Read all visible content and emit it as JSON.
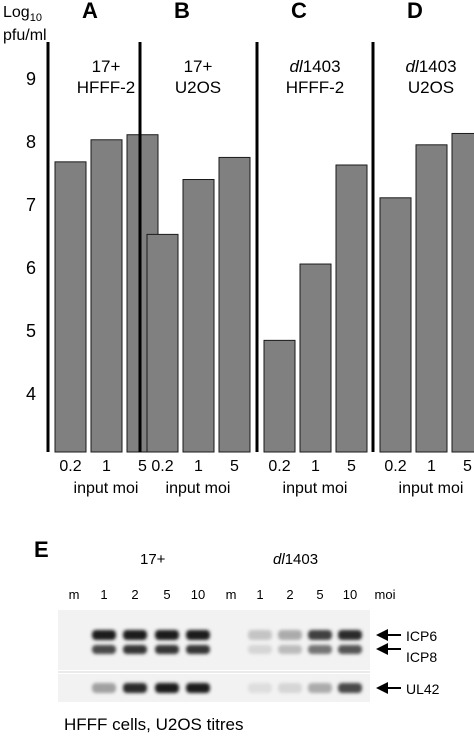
{
  "chart_data": [
    {
      "type": "bar",
      "panel": "A",
      "condition": [
        "17+",
        "HFFF-2"
      ],
      "categories": [
        "0.2",
        "1",
        "5"
      ],
      "values": [
        7.7,
        8.05,
        8.13
      ],
      "xlabel": "input moi",
      "ylabel": "Log10 pfu/ml",
      "ylim": [
        3.1,
        9.6
      ],
      "yticks": [
        4,
        5,
        6,
        7,
        8,
        9
      ]
    },
    {
      "type": "bar",
      "panel": "B",
      "condition": [
        "17+",
        "U2OS"
      ],
      "categories": [
        "0.2",
        "1",
        "5"
      ],
      "values": [
        6.55,
        7.42,
        7.77
      ],
      "xlabel": "input moi",
      "ylim": [
        3.1,
        9.6
      ]
    },
    {
      "type": "bar",
      "panel": "C",
      "condition": [
        "dl1403",
        "HFFF-2"
      ],
      "categories": [
        "0.2",
        "1",
        "5"
      ],
      "values": [
        4.87,
        6.08,
        7.65
      ],
      "xlabel": "input moi",
      "ylim": [
        3.1,
        9.6
      ]
    },
    {
      "type": "bar",
      "panel": "D",
      "condition": [
        "dl1403",
        "U2OS"
      ],
      "categories": [
        "0.2",
        "1",
        "5"
      ],
      "values": [
        7.13,
        7.97,
        8.15
      ],
      "xlabel": "input moi",
      "ylim": [
        3.1,
        9.6
      ]
    }
  ],
  "ylabel": {
    "log": "Log",
    "sub": "10",
    "unit": "pfu/ml"
  },
  "bar_color": "#808080",
  "blot": {
    "panel": "E",
    "group1": "17+",
    "group2_prefix": "dl",
    "group2_suffix": "1403",
    "lanes": [
      "m",
      "1",
      "2",
      "5",
      "10",
      "m",
      "1",
      "2",
      "5",
      "10"
    ],
    "moi_label": "moi",
    "bands": [
      "ICP6",
      "ICP8",
      "UL42"
    ],
    "caption": "HFFF cells, U2OS titres"
  }
}
